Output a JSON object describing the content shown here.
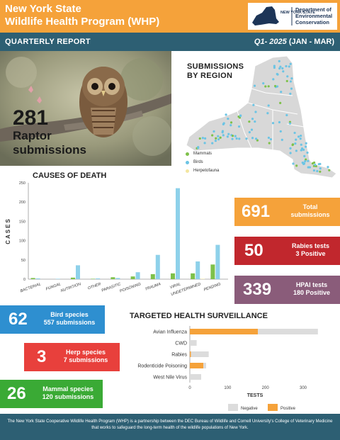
{
  "header": {
    "title_line1": "New York State",
    "title_line2": "Wildlife Health Program (WHP)",
    "logo_text": "NEW YORK STATE",
    "agency": "Department of Environmental Conservation"
  },
  "subheader": {
    "label": "QUARTERLY REPORT",
    "period_bold": "Q1- 2025",
    "period_rest": " (JAN - MAR)"
  },
  "raptor": {
    "count": "281",
    "label_line1": "Raptor",
    "label_line2": "submissions"
  },
  "map": {
    "title_line1": "SUBMISSIONS",
    "title_line2": "BY REGION",
    "legend": [
      {
        "label": "Mammals",
        "color": "#7ec14a"
      },
      {
        "label": "Birds",
        "color": "#6cc4e4"
      },
      {
        "label": "Herpetofauna",
        "color": "#f3e6a0"
      }
    ]
  },
  "stats": {
    "total": {
      "value": "691",
      "label_line1": "Total",
      "label_line2": "submissions",
      "color": "#f5a23a"
    },
    "rabies": {
      "value": "50",
      "label_line1": "Rabies tests",
      "label_line2": "3 Positive",
      "color": "#c1272d"
    },
    "hpai": {
      "value": "339",
      "label_line1": "HPAI tests",
      "label_line2": "180 Positive",
      "color": "#8a5c7a"
    },
    "birds": {
      "value": "62",
      "label_line1": "Bird species",
      "label_line2": "557 submissions",
      "color": "#2e8fd0"
    },
    "herps": {
      "value": "3",
      "label_line1": "Herp species",
      "label_line2": "7 submissions",
      "color": "#e8403c"
    },
    "mammals": {
      "value": "26",
      "label_line1": "Mammal species",
      "label_line2": "120 submissions",
      "color": "#3aaa35"
    }
  },
  "chart_data": [
    {
      "type": "bar",
      "title": "CAUSES OF DEATH",
      "ylabel": "CASES",
      "ylim": [
        0,
        250
      ],
      "yticks": [
        0,
        50,
        100,
        150,
        200,
        250
      ],
      "categories": [
        "BACTERIAL",
        "FUNGAL",
        "NUTRITION",
        "OTHER",
        "PARASITIC",
        "POISONING",
        "TRAUMA",
        "VIRAL",
        "UNDETERMINED",
        "PENDING"
      ],
      "series": [
        {
          "name": "Mammals",
          "color": "#7ec14a",
          "values": [
            3,
            0,
            4,
            1,
            5,
            7,
            13,
            15,
            15,
            38
          ]
        },
        {
          "name": "Birds",
          "color": "#8ed1ea",
          "values": [
            2,
            1,
            36,
            2,
            3,
            18,
            63,
            236,
            46,
            89
          ]
        },
        {
          "name": "Herpetofauna",
          "color": "#f3e6a0",
          "values": [
            0,
            0,
            0,
            0,
            0,
            0,
            0,
            0,
            1,
            0
          ]
        }
      ]
    },
    {
      "type": "bar",
      "orientation": "horizontal",
      "stacked": true,
      "title": "TARGETED HEALTH SURVEILLANCE",
      "xlabel": "TESTS",
      "xlim": [
        0,
        339
      ],
      "xticks": [
        0,
        100,
        200,
        300
      ],
      "categories": [
        "Avian Influenza",
        "CWD",
        "Rabies",
        "Rodenticide Poisoning",
        "West Nile Virus"
      ],
      "series": [
        {
          "name": "Positive",
          "color": "#f5a23a",
          "values": [
            180,
            0,
            3,
            36,
            0
          ]
        },
        {
          "name": "Negative",
          "color": "#dcdcdc",
          "values": [
            159,
            18,
            47,
            7,
            30
          ]
        }
      ]
    }
  ],
  "footer": {
    "text": "The New York State Cooperative Wildlife Health Program (WHP) is a partnership between the DEC Bureau of Wildlife and Cornell University's College of Veterinary Medicine that works to safeguard the long-term health of the wildlife populations of New York."
  }
}
